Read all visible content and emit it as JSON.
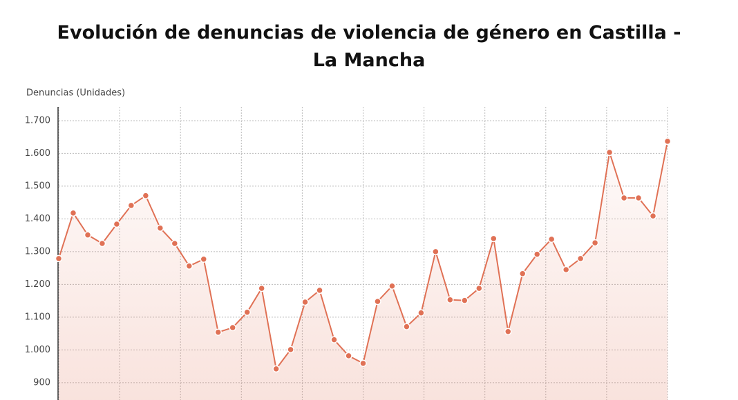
{
  "chart_data": {
    "type": "line",
    "title": "Evolución de denuncias de violencia de género en Castilla - La Mancha",
    "y_label": "Denuncias (Unidades)",
    "categories": [
      null,
      null,
      null,
      null,
      null,
      null,
      null,
      null,
      null,
      null,
      null,
      null,
      null,
      null,
      null,
      null,
      null,
      null,
      null,
      null,
      null,
      null,
      null,
      null,
      null,
      null,
      null,
      null,
      null,
      null,
      null,
      null,
      null,
      null,
      null,
      null,
      null,
      null,
      null,
      null,
      null,
      null,
      null
    ],
    "series": [
      {
        "name": "Denuncias",
        "color": "#e07155",
        "values": [
          1279,
          1418,
          1351,
          1325,
          1384,
          1441,
          1471,
          1372,
          1325,
          1256,
          1277,
          1054,
          1068,
          1115,
          1188,
          942,
          1001,
          1146,
          1182,
          1031,
          982,
          959,
          1148,
          1195,
          1071,
          1113,
          1300,
          1153,
          1151,
          1188,
          1340,
          1056,
          1233,
          1292,
          1338,
          1245,
          1279,
          1327,
          1603,
          1464,
          1464,
          1409,
          1637
        ]
      }
    ],
    "ylim": [
      847,
      1742
    ],
    "yticks": [
      {
        "value": 900,
        "label": "900"
      },
      {
        "value": 1000,
        "label": "1.000"
      },
      {
        "value": 1100,
        "label": "1.100"
      },
      {
        "value": 1200,
        "label": "1.200"
      },
      {
        "value": 1300,
        "label": "1.300"
      },
      {
        "value": 1400,
        "label": "1.400"
      },
      {
        "value": 1500,
        "label": "1.500"
      },
      {
        "value": 1600,
        "label": "1.600"
      },
      {
        "value": 1700,
        "label": "1.700"
      }
    ],
    "grid": true
  }
}
